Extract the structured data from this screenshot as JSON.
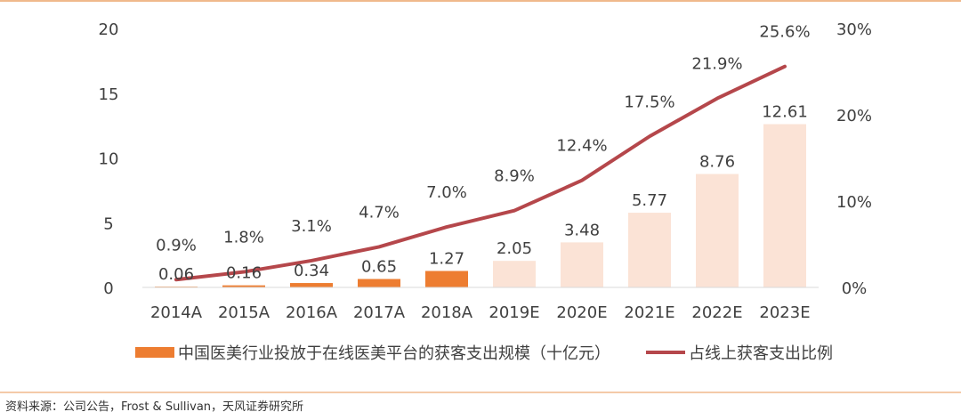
{
  "chart_data": {
    "type": "bar+line",
    "categories": [
      "2014A",
      "2015A",
      "2016A",
      "2017A",
      "2018A",
      "2019E",
      "2020E",
      "2021E",
      "2022E",
      "2023E"
    ],
    "bar_series": {
      "name": "中国医美行业投放于在线医美平台的获客支出规模（十亿元）",
      "values": [
        0.06,
        0.16,
        0.34,
        0.65,
        1.27,
        2.05,
        3.48,
        5.77,
        8.76,
        12.61
      ],
      "labels": [
        "0.06",
        "0.16",
        "0.34",
        "0.65",
        "1.27",
        "2.05",
        "3.48",
        "5.77",
        "8.76",
        "12.61"
      ]
    },
    "line_series": {
      "name": "占线上获客支出比例",
      "values": [
        0.9,
        1.8,
        3.1,
        4.7,
        7.0,
        8.9,
        12.4,
        17.5,
        21.9,
        25.6
      ],
      "labels": [
        "0.9%",
        "1.8%",
        "3.1%",
        "4.7%",
        "7.0%",
        "8.9%",
        "12.4%",
        "17.5%",
        "21.9%",
        "25.6%"
      ]
    },
    "y_left": {
      "ylim": [
        0,
        20
      ],
      "ticks": [
        "0",
        "5",
        "10",
        "15",
        "20"
      ],
      "tick_values": [
        0,
        5,
        10,
        15,
        20
      ]
    },
    "y_right": {
      "ylim": [
        0,
        30
      ],
      "ticks": [
        "0%",
        "10%",
        "20%",
        "30%"
      ],
      "tick_values": [
        0,
        10,
        20,
        30
      ]
    },
    "legend": {
      "bar_label": "中国医美行业投放于在线医美平台的获客支出规模（十亿元）",
      "line_label": "占线上获客支出比例"
    }
  },
  "source": "资料来源：公司公告，Frost & Sullivan，天风证券研究所",
  "colors": {
    "actual_bar": "#ED7D31",
    "estimate_bar": "#FBE3D6",
    "line": "#B5474B",
    "accent_rule": "#F0B98C",
    "text": "#404040"
  }
}
